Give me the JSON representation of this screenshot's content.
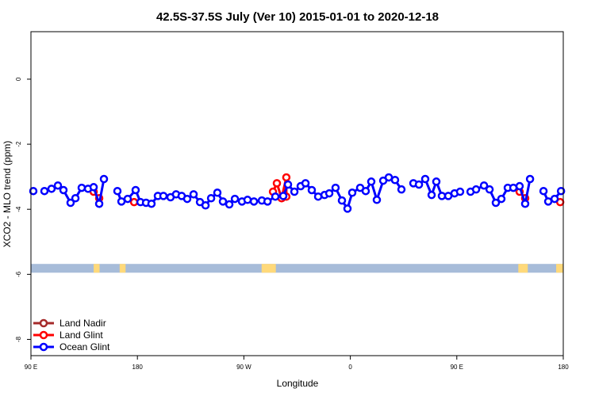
{
  "chart_data": {
    "type": "line",
    "title": "42.5S-37.5S July (Ver 10)   2015-01-01 to 2020-12-18",
    "xlabel": "Longitude",
    "ylabel": "XCO2 - MLO trend (ppm)",
    "xlim": [
      90,
      540
    ],
    "ylim": [
      -8.5,
      1.46
    ],
    "xticks": [
      {
        "v": 90,
        "label": "90 E"
      },
      {
        "v": 180,
        "label": "180"
      },
      {
        "v": 270,
        "label": "90 W"
      },
      {
        "v": 360,
        "label": "0"
      },
      {
        "v": 450,
        "label": "90 E"
      },
      {
        "v": 540,
        "label": "180"
      }
    ],
    "yticks": [
      {
        "v": 0,
        "label": "0"
      },
      {
        "v": -2,
        "label": "-2"
      },
      {
        "v": -4,
        "label": "-4"
      },
      {
        "v": -6,
        "label": "-6"
      },
      {
        "v": -8,
        "label": "-8"
      }
    ],
    "legend_position": "bottom-left",
    "series": [
      {
        "name": "Land Nadir",
        "color": "#a52a2a",
        "points": []
      },
      {
        "name": "Land Glint",
        "color": "#ff0000",
        "points": [
          [
            143.0,
            -3.46
          ],
          [
            147.7,
            -3.66
          ],
          null,
          [
            177.2,
            -3.78
          ],
          null,
          [
            294.6,
            -3.46
          ],
          [
            297.9,
            -3.2
          ],
          [
            301.9,
            -3.66
          ],
          [
            305.9,
            -3.02
          ],
          [
            305.9,
            -3.61
          ],
          null,
          [
            503.1,
            -3.46
          ],
          [
            507.8,
            -3.66
          ],
          null,
          [
            537.4,
            -3.78
          ]
        ]
      },
      {
        "name": "Ocean Glint",
        "color": "#0000ff",
        "points": [
          [
            92.0,
            -3.44
          ],
          null,
          [
            101.4,
            -3.44
          ],
          [
            107.4,
            -3.37
          ],
          [
            112.8,
            -3.27
          ],
          [
            117.5,
            -3.41
          ],
          [
            123.5,
            -3.8
          ],
          [
            127.6,
            -3.66
          ],
          [
            132.9,
            -3.34
          ],
          [
            138.3,
            -3.37
          ],
          [
            143.0,
            -3.32
          ],
          [
            147.7,
            -3.83
          ],
          [
            151.7,
            -3.07
          ],
          null,
          [
            163.1,
            -3.44
          ],
          [
            166.5,
            -3.76
          ],
          [
            171.8,
            -3.68
          ],
          [
            178.5,
            -3.41
          ],
          [
            182.6,
            -3.78
          ],
          [
            187.3,
            -3.8
          ],
          [
            191.9,
            -3.83
          ],
          [
            197.3,
            -3.59
          ],
          [
            202.0,
            -3.59
          ],
          [
            208.0,
            -3.63
          ],
          [
            212.7,
            -3.54
          ],
          [
            217.4,
            -3.59
          ],
          [
            222.1,
            -3.68
          ],
          [
            227.5,
            -3.54
          ],
          [
            232.9,
            -3.78
          ],
          [
            237.6,
            -3.88
          ],
          [
            242.3,
            -3.66
          ],
          [
            247.6,
            -3.49
          ],
          [
            252.3,
            -3.76
          ],
          [
            257.7,
            -3.85
          ],
          [
            262.4,
            -3.68
          ],
          [
            268.4,
            -3.76
          ],
          [
            273.1,
            -3.71
          ],
          [
            278.5,
            -3.76
          ],
          [
            285.2,
            -3.73
          ],
          [
            290.0,
            -3.76
          ],
          [
            296.6,
            -3.61
          ],
          [
            303.3,
            -3.59
          ],
          [
            307.3,
            -3.24
          ],
          [
            312.7,
            -3.46
          ],
          [
            318.0,
            -3.29
          ],
          [
            322.1,
            -3.2
          ],
          [
            327.4,
            -3.41
          ],
          [
            332.8,
            -3.61
          ],
          [
            338.2,
            -3.56
          ],
          [
            342.2,
            -3.51
          ],
          [
            347.5,
            -3.34
          ],
          [
            352.9,
            -3.73
          ],
          [
            357.6,
            -3.98
          ],
          [
            361.6,
            -3.49
          ],
          [
            368.3,
            -3.34
          ],
          [
            373.0,
            -3.44
          ],
          [
            377.7,
            -3.15
          ],
          [
            382.4,
            -3.71
          ],
          [
            387.8,
            -3.12
          ],
          [
            392.5,
            -3.02
          ],
          [
            397.8,
            -3.1
          ],
          [
            403.2,
            -3.39
          ],
          null,
          [
            413.3,
            -3.2
          ],
          [
            418.0,
            -3.24
          ],
          [
            423.3,
            -3.07
          ],
          [
            428.7,
            -3.56
          ],
          [
            432.7,
            -3.15
          ],
          [
            437.4,
            -3.59
          ],
          [
            442.8,
            -3.59
          ],
          [
            448.1,
            -3.51
          ],
          [
            452.8,
            -3.46
          ],
          null,
          [
            461.6,
            -3.46
          ],
          [
            466.3,
            -3.39
          ],
          [
            473.0,
            -3.27
          ],
          [
            477.7,
            -3.39
          ],
          [
            483.0,
            -3.8
          ],
          [
            487.7,
            -3.68
          ],
          [
            493.1,
            -3.34
          ],
          [
            497.8,
            -3.34
          ],
          [
            503.1,
            -3.29
          ],
          [
            507.8,
            -3.83
          ],
          [
            511.9,
            -3.07
          ],
          null,
          [
            523.3,
            -3.44
          ],
          [
            527.3,
            -3.76
          ],
          [
            532.7,
            -3.68
          ],
          [
            538.1,
            -3.44
          ]
        ]
      }
    ],
    "surface_band": {
      "y_range": [
        -5.95,
        -5.68
      ],
      "ocean_color": "#a7bcd9",
      "land_color": "#ffd97a",
      "land_lon": [
        [
          143,
          148
        ],
        [
          165,
          170
        ],
        [
          285,
          297
        ],
        [
          502,
          510
        ],
        [
          534,
          540
        ]
      ]
    }
  }
}
